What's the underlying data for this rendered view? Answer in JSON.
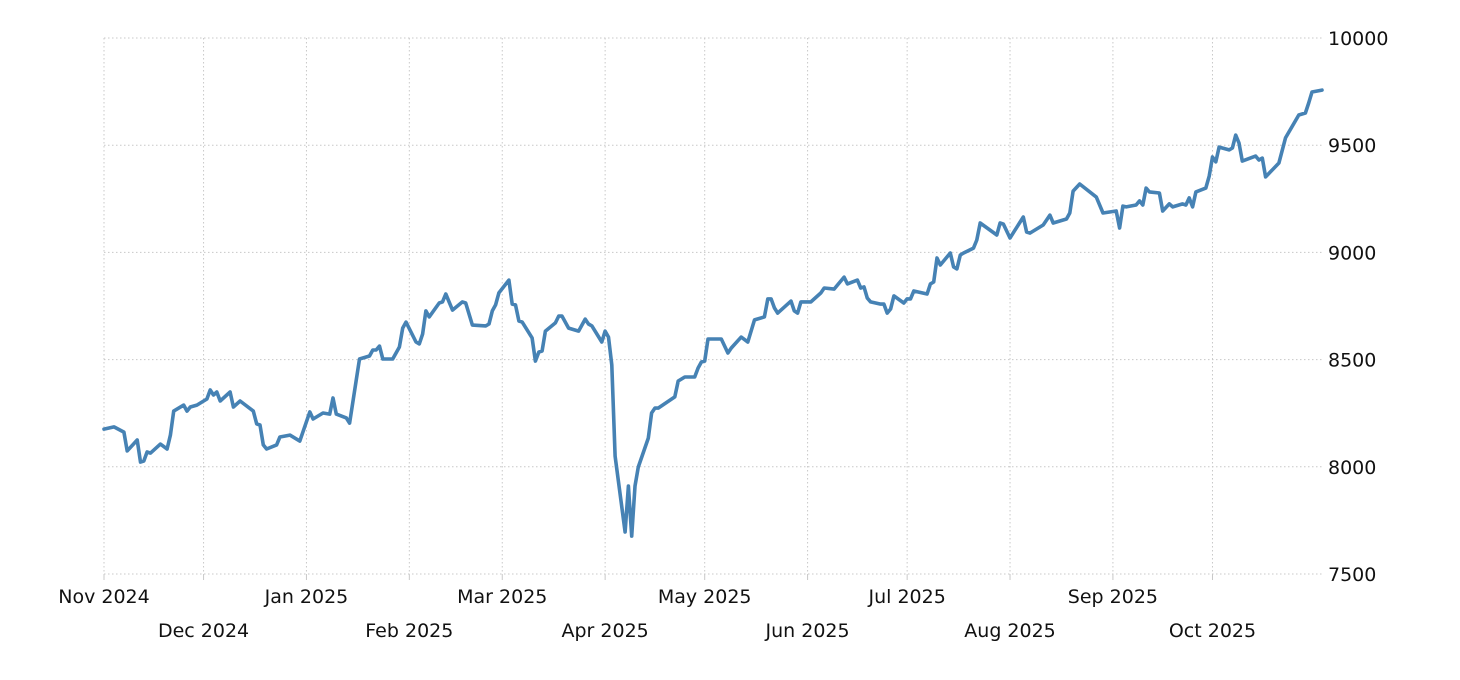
{
  "chart_data": {
    "type": "line",
    "title": "",
    "xlabel": "",
    "ylabel": "",
    "ylim": [
      7500,
      10000
    ],
    "xlim": [
      "2024-11-01",
      "2025-11-03"
    ],
    "grid": true,
    "y_axis_side": "right",
    "line_color": "#4682b4",
    "yticks": [
      {
        "value": 7500,
        "label": "7500"
      },
      {
        "value": 8000,
        "label": "8000"
      },
      {
        "value": 8500,
        "label": "8500"
      },
      {
        "value": 9000,
        "label": "9000"
      },
      {
        "value": 9500,
        "label": "9500"
      },
      {
        "value": 10000,
        "label": "10000"
      }
    ],
    "xticks": [
      {
        "date": "2024-11-01",
        "label": "Nov 2024",
        "row": 1
      },
      {
        "date": "2024-12-01",
        "label": "Dec 2024",
        "row": 2
      },
      {
        "date": "2025-01-01",
        "label": "Jan 2025",
        "row": 1
      },
      {
        "date": "2025-02-01",
        "label": "Feb 2025",
        "row": 2
      },
      {
        "date": "2025-03-01",
        "label": "Mar 2025",
        "row": 1
      },
      {
        "date": "2025-04-01",
        "label": "Apr 2025",
        "row": 2
      },
      {
        "date": "2025-05-01",
        "label": "May 2025",
        "row": 1
      },
      {
        "date": "2025-06-01",
        "label": "Jun 2025",
        "row": 2
      },
      {
        "date": "2025-07-01",
        "label": "Jul 2025",
        "row": 1
      },
      {
        "date": "2025-08-01",
        "label": "Aug 2025",
        "row": 2
      },
      {
        "date": "2025-09-01",
        "label": "Sep 2025",
        "row": 1
      },
      {
        "date": "2025-10-01",
        "label": "Oct 2025",
        "row": 2
      }
    ],
    "series": [
      {
        "points": [
          [
            "2024-11-01",
            8176
          ],
          [
            "2024-11-04",
            8186
          ],
          [
            "2024-11-07",
            8162
          ],
          [
            "2024-11-08",
            8074
          ],
          [
            "2024-11-11",
            8125
          ],
          [
            "2024-11-12",
            8022
          ],
          [
            "2024-11-13",
            8027
          ],
          [
            "2024-11-14",
            8069
          ],
          [
            "2024-11-15",
            8064
          ],
          [
            "2024-11-18",
            8106
          ],
          [
            "2024-11-20",
            8083
          ],
          [
            "2024-11-21",
            8148
          ],
          [
            "2024-11-22",
            8260
          ],
          [
            "2024-11-25",
            8288
          ],
          [
            "2024-11-26",
            8260
          ],
          [
            "2024-11-27",
            8279
          ],
          [
            "2024-11-29",
            8288
          ],
          [
            "2024-12-02",
            8316
          ],
          [
            "2024-12-03",
            8358
          ],
          [
            "2024-12-04",
            8335
          ],
          [
            "2024-12-05",
            8349
          ],
          [
            "2024-12-06",
            8307
          ],
          [
            "2024-12-09",
            8349
          ],
          [
            "2024-12-10",
            8279
          ],
          [
            "2024-12-12",
            8307
          ],
          [
            "2024-12-16",
            8260
          ],
          [
            "2024-12-17",
            8200
          ],
          [
            "2024-12-18",
            8195
          ],
          [
            "2024-12-19",
            8102
          ],
          [
            "2024-12-20",
            8083
          ],
          [
            "2024-12-23",
            8102
          ],
          [
            "2024-12-24",
            8139
          ],
          [
            "2024-12-27",
            8148
          ],
          [
            "2024-12-30",
            8120
          ],
          [
            "2025-01-02",
            8256
          ],
          [
            "2025-01-03",
            8223
          ],
          [
            "2025-01-06",
            8251
          ],
          [
            "2025-01-08",
            8246
          ],
          [
            "2025-01-09",
            8321
          ],
          [
            "2025-01-10",
            8246
          ],
          [
            "2025-01-13",
            8228
          ],
          [
            "2025-01-14",
            8204
          ],
          [
            "2025-01-17",
            8503
          ],
          [
            "2025-01-20",
            8517
          ],
          [
            "2025-01-21",
            8545
          ],
          [
            "2025-01-22",
            8545
          ],
          [
            "2025-01-23",
            8563
          ],
          [
            "2025-01-24",
            8503
          ],
          [
            "2025-01-27",
            8503
          ],
          [
            "2025-01-29",
            8559
          ],
          [
            "2025-01-30",
            8647
          ],
          [
            "2025-01-31",
            8675
          ],
          [
            "2025-02-03",
            8582
          ],
          [
            "2025-02-04",
            8573
          ],
          [
            "2025-02-05",
            8619
          ],
          [
            "2025-02-06",
            8727
          ],
          [
            "2025-02-07",
            8699
          ],
          [
            "2025-02-10",
            8764
          ],
          [
            "2025-02-11",
            8769
          ],
          [
            "2025-02-12",
            8806
          ],
          [
            "2025-02-14",
            8731
          ],
          [
            "2025-02-17",
            8769
          ],
          [
            "2025-02-18",
            8764
          ],
          [
            "2025-02-20",
            8661
          ],
          [
            "2025-02-24",
            8657
          ],
          [
            "2025-02-25",
            8666
          ],
          [
            "2025-02-26",
            8727
          ],
          [
            "2025-02-27",
            8755
          ],
          [
            "2025-02-28",
            8811
          ],
          [
            "2025-03-03",
            8871
          ],
          [
            "2025-03-04",
            8759
          ],
          [
            "2025-03-05",
            8755
          ],
          [
            "2025-03-06",
            8680
          ],
          [
            "2025-03-07",
            8675
          ],
          [
            "2025-03-10",
            8601
          ],
          [
            "2025-03-11",
            8493
          ],
          [
            "2025-03-12",
            8535
          ],
          [
            "2025-03-13",
            8540
          ],
          [
            "2025-03-14",
            8633
          ],
          [
            "2025-03-17",
            8671
          ],
          [
            "2025-03-18",
            8703
          ],
          [
            "2025-03-19",
            8703
          ],
          [
            "2025-03-21",
            8647
          ],
          [
            "2025-03-24",
            8633
          ],
          [
            "2025-03-26",
            8689
          ],
          [
            "2025-03-27",
            8666
          ],
          [
            "2025-03-28",
            8657
          ],
          [
            "2025-03-31",
            8582
          ],
          [
            "2025-04-01",
            8633
          ],
          [
            "2025-04-02",
            8605
          ],
          [
            "2025-04-03",
            8475
          ],
          [
            "2025-04-04",
            8050
          ],
          [
            "2025-04-07",
            7696
          ],
          [
            "2025-04-08",
            7910
          ],
          [
            "2025-04-09",
            7677
          ],
          [
            "2025-04-10",
            7910
          ],
          [
            "2025-04-11",
            7999
          ],
          [
            "2025-04-14",
            8134
          ],
          [
            "2025-04-15",
            8251
          ],
          [
            "2025-04-16",
            8274
          ],
          [
            "2025-04-17",
            8274
          ],
          [
            "2025-04-22",
            8326
          ],
          [
            "2025-04-23",
            8400
          ],
          [
            "2025-04-25",
            8419
          ],
          [
            "2025-04-28",
            8419
          ],
          [
            "2025-04-29",
            8461
          ],
          [
            "2025-04-30",
            8489
          ],
          [
            "2025-05-01",
            8493
          ],
          [
            "2025-05-02",
            8596
          ],
          [
            "2025-05-06",
            8596
          ],
          [
            "2025-05-08",
            8531
          ],
          [
            "2025-05-09",
            8554
          ],
          [
            "2025-05-12",
            8605
          ],
          [
            "2025-05-14",
            8582
          ],
          [
            "2025-05-16",
            8685
          ],
          [
            "2025-05-19",
            8699
          ],
          [
            "2025-05-20",
            8783
          ],
          [
            "2025-05-21",
            8783
          ],
          [
            "2025-05-22",
            8741
          ],
          [
            "2025-05-23",
            8717
          ],
          [
            "2025-05-27",
            8773
          ],
          [
            "2025-05-28",
            8727
          ],
          [
            "2025-05-29",
            8717
          ],
          [
            "2025-05-30",
            8769
          ],
          [
            "2025-06-02",
            8769
          ],
          [
            "2025-06-05",
            8811
          ],
          [
            "2025-06-06",
            8834
          ],
          [
            "2025-06-09",
            8829
          ],
          [
            "2025-06-10",
            8848
          ],
          [
            "2025-06-12",
            8885
          ],
          [
            "2025-06-13",
            8853
          ],
          [
            "2025-06-16",
            8871
          ],
          [
            "2025-06-17",
            8834
          ],
          [
            "2025-06-18",
            8839
          ],
          [
            "2025-06-19",
            8787
          ],
          [
            "2025-06-20",
            8769
          ],
          [
            "2025-06-23",
            8759
          ],
          [
            "2025-06-24",
            8759
          ],
          [
            "2025-06-25",
            8717
          ],
          [
            "2025-06-26",
            8736
          ],
          [
            "2025-06-27",
            8797
          ],
          [
            "2025-06-30",
            8764
          ],
          [
            "2025-07-01",
            8783
          ],
          [
            "2025-07-02",
            8783
          ],
          [
            "2025-07-03",
            8820
          ],
          [
            "2025-07-07",
            8806
          ],
          [
            "2025-07-08",
            8853
          ],
          [
            "2025-07-09",
            8862
          ],
          [
            "2025-07-10",
            8974
          ],
          [
            "2025-07-11",
            8941
          ],
          [
            "2025-07-14",
            8997
          ],
          [
            "2025-07-15",
            8932
          ],
          [
            "2025-07-16",
            8923
          ],
          [
            "2025-07-17",
            8988
          ],
          [
            "2025-07-18",
            8997
          ],
          [
            "2025-07-21",
            9020
          ],
          [
            "2025-07-22",
            9058
          ],
          [
            "2025-07-23",
            9137
          ],
          [
            "2025-07-28",
            9081
          ],
          [
            "2025-07-29",
            9137
          ],
          [
            "2025-07-30",
            9132
          ],
          [
            "2025-08-01",
            9067
          ],
          [
            "2025-08-05",
            9165
          ],
          [
            "2025-08-06",
            9095
          ],
          [
            "2025-08-07",
            9090
          ],
          [
            "2025-08-11",
            9128
          ],
          [
            "2025-08-13",
            9174
          ],
          [
            "2025-08-14",
            9137
          ],
          [
            "2025-08-18",
            9156
          ],
          [
            "2025-08-19",
            9184
          ],
          [
            "2025-08-20",
            9286
          ],
          [
            "2025-08-22",
            9319
          ],
          [
            "2025-08-27",
            9258
          ],
          [
            "2025-08-29",
            9184
          ],
          [
            "2025-09-02",
            9193
          ],
          [
            "2025-09-03",
            9114
          ],
          [
            "2025-09-04",
            9216
          ],
          [
            "2025-09-05",
            9212
          ],
          [
            "2025-09-08",
            9221
          ],
          [
            "2025-09-09",
            9240
          ],
          [
            "2025-09-10",
            9221
          ],
          [
            "2025-09-11",
            9300
          ],
          [
            "2025-09-12",
            9282
          ],
          [
            "2025-09-15",
            9277
          ],
          [
            "2025-09-16",
            9193
          ],
          [
            "2025-09-18",
            9226
          ],
          [
            "2025-09-19",
            9212
          ],
          [
            "2025-09-22",
            9226
          ],
          [
            "2025-09-23",
            9221
          ],
          [
            "2025-09-24",
            9254
          ],
          [
            "2025-09-25",
            9212
          ],
          [
            "2025-09-26",
            9282
          ],
          [
            "2025-09-29",
            9300
          ],
          [
            "2025-09-30",
            9356
          ],
          [
            "2025-10-01",
            9445
          ],
          [
            "2025-10-02",
            9422
          ],
          [
            "2025-10-03",
            9491
          ],
          [
            "2025-10-06",
            9478
          ],
          [
            "2025-10-07",
            9487
          ],
          [
            "2025-10-08",
            9547
          ],
          [
            "2025-10-09",
            9510
          ],
          [
            "2025-10-10",
            9426
          ],
          [
            "2025-10-14",
            9449
          ],
          [
            "2025-10-15",
            9431
          ],
          [
            "2025-10-16",
            9440
          ],
          [
            "2025-10-17",
            9352
          ],
          [
            "2025-10-21",
            9417
          ],
          [
            "2025-10-23",
            9534
          ],
          [
            "2025-10-27",
            9641
          ],
          [
            "2025-10-29",
            9650
          ],
          [
            "2025-10-30",
            9697
          ],
          [
            "2025-10-31",
            9748
          ],
          [
            "2025-11-03",
            9757
          ]
        ]
      }
    ]
  }
}
